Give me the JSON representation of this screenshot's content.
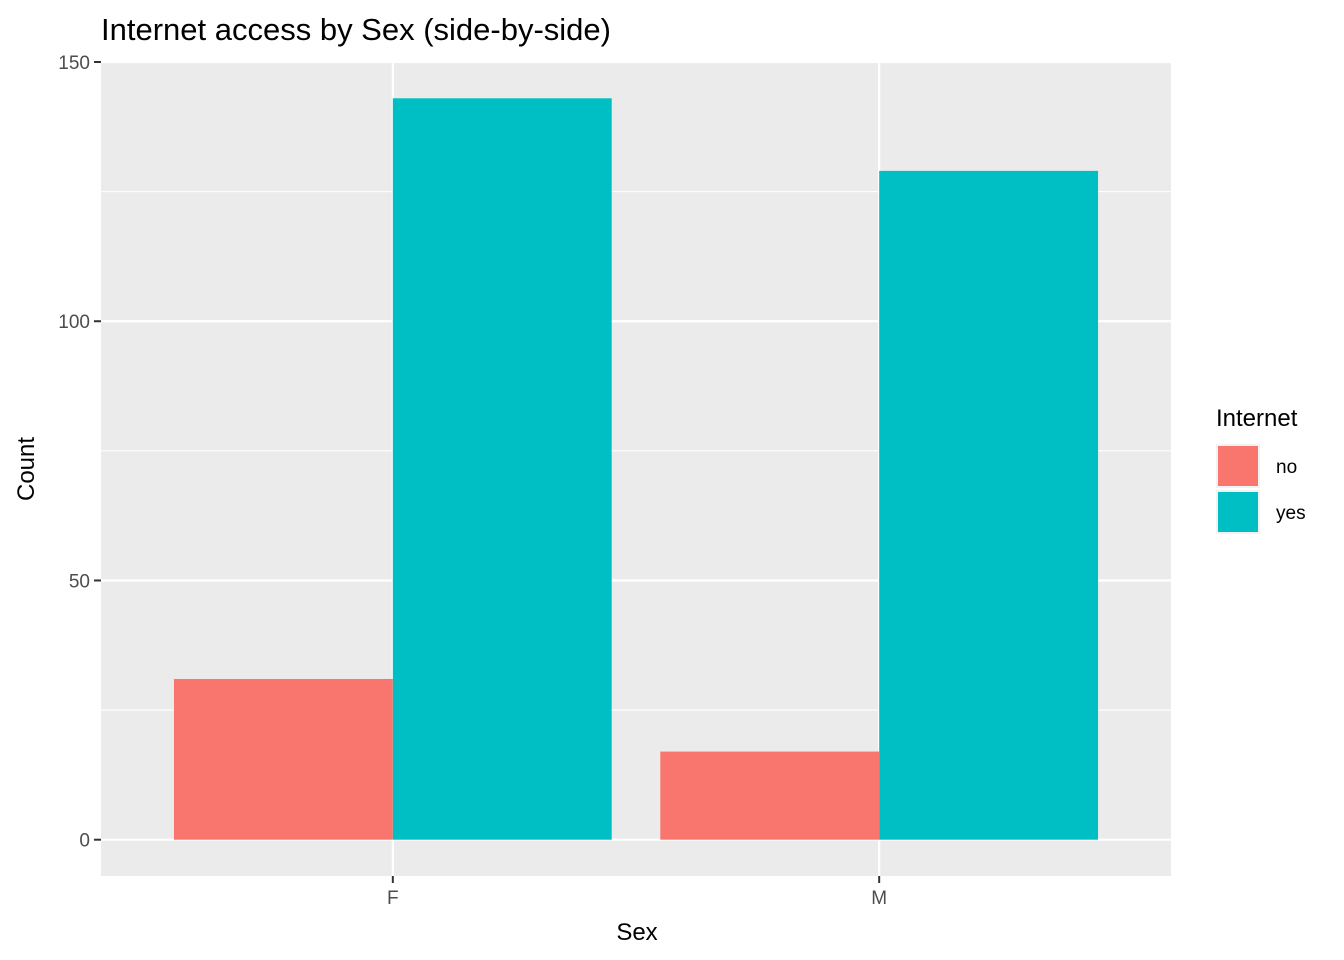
{
  "chart_data": {
    "type": "bar",
    "title": "Internet access by Sex (side-by-side)",
    "xlabel": "Sex",
    "ylabel": "Count",
    "categories": [
      "F",
      "M"
    ],
    "series": [
      {
        "name": "no",
        "color": "#F8766D",
        "values": [
          31,
          17
        ]
      },
      {
        "name": "yes",
        "color": "#00BFC4",
        "values": [
          143,
          129
        ]
      }
    ],
    "ylim": [
      -7,
      150
    ],
    "yticks": [
      0,
      50,
      100,
      150
    ],
    "grid": true,
    "legend": {
      "title": "Internet",
      "placement": "right"
    }
  }
}
